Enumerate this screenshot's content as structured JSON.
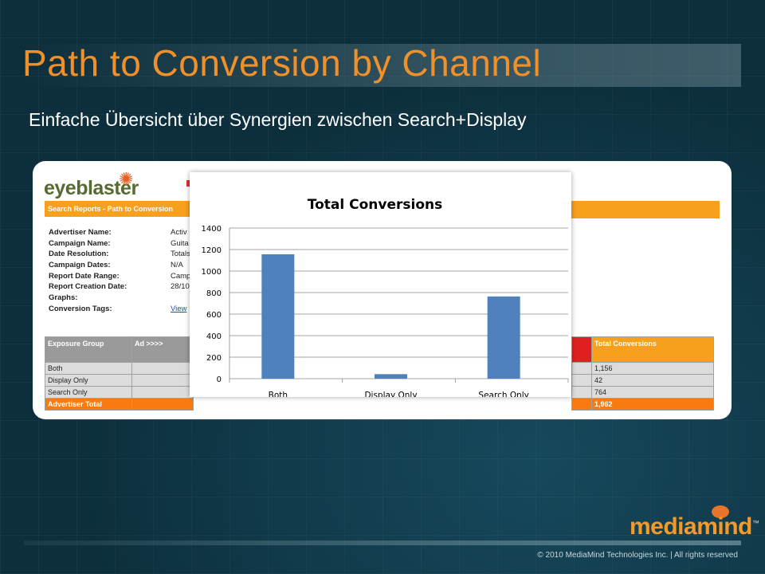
{
  "slide": {
    "title": "Path to Conversion by Channel",
    "subtitle": "Einfache Übersicht über Synergien zwischen Search+Display",
    "copyright": "© 2010 MediaMind Technologies Inc. | All rights reserved",
    "brand": "mediamind",
    "brand_tm": "™"
  },
  "report": {
    "logo": "eyeblaster",
    "header": "Search Reports - Path to Conversion",
    "meta": [
      {
        "label": "Advertiser Name:",
        "value": "Activ"
      },
      {
        "label": "Campaign Name:",
        "value": "Guita"
      },
      {
        "label": "Date Resolution:",
        "value": "Totals"
      },
      {
        "label": "Campaign Dates:",
        "value": "N/A"
      },
      {
        "label": "Report Date Range:",
        "value": "Camp"
      },
      {
        "label": "Report Creation Date:",
        "value": "28/10"
      },
      {
        "label": "Graphs:",
        "value": ""
      },
      {
        "label": "Conversion Tags:",
        "value": "View"
      }
    ],
    "table": {
      "headers": [
        "Exposure Group",
        "Ad >>>>"
      ],
      "rows": [
        "Both",
        "Display Only",
        "Search Only"
      ],
      "total_label": "Advertiser Total",
      "right_header": "Total Conversions",
      "right_values": [
        "1,156",
        "42",
        "764"
      ],
      "right_total": "1,962"
    }
  },
  "chart_data": {
    "type": "bar",
    "title": "Total Conversions",
    "categories": [
      "Both",
      "Display Only",
      "Search Only"
    ],
    "values": [
      1156,
      42,
      764
    ],
    "ylim": [
      0,
      1400
    ],
    "yticks": [
      0,
      200,
      400,
      600,
      800,
      1000,
      1200,
      1400
    ],
    "grid": true,
    "legend": "none",
    "bar_color": "#4f81bd"
  },
  "colors": {
    "accent": "#f0902a",
    "background": "#0d2f3d",
    "report_orange": "#f7a01e"
  }
}
